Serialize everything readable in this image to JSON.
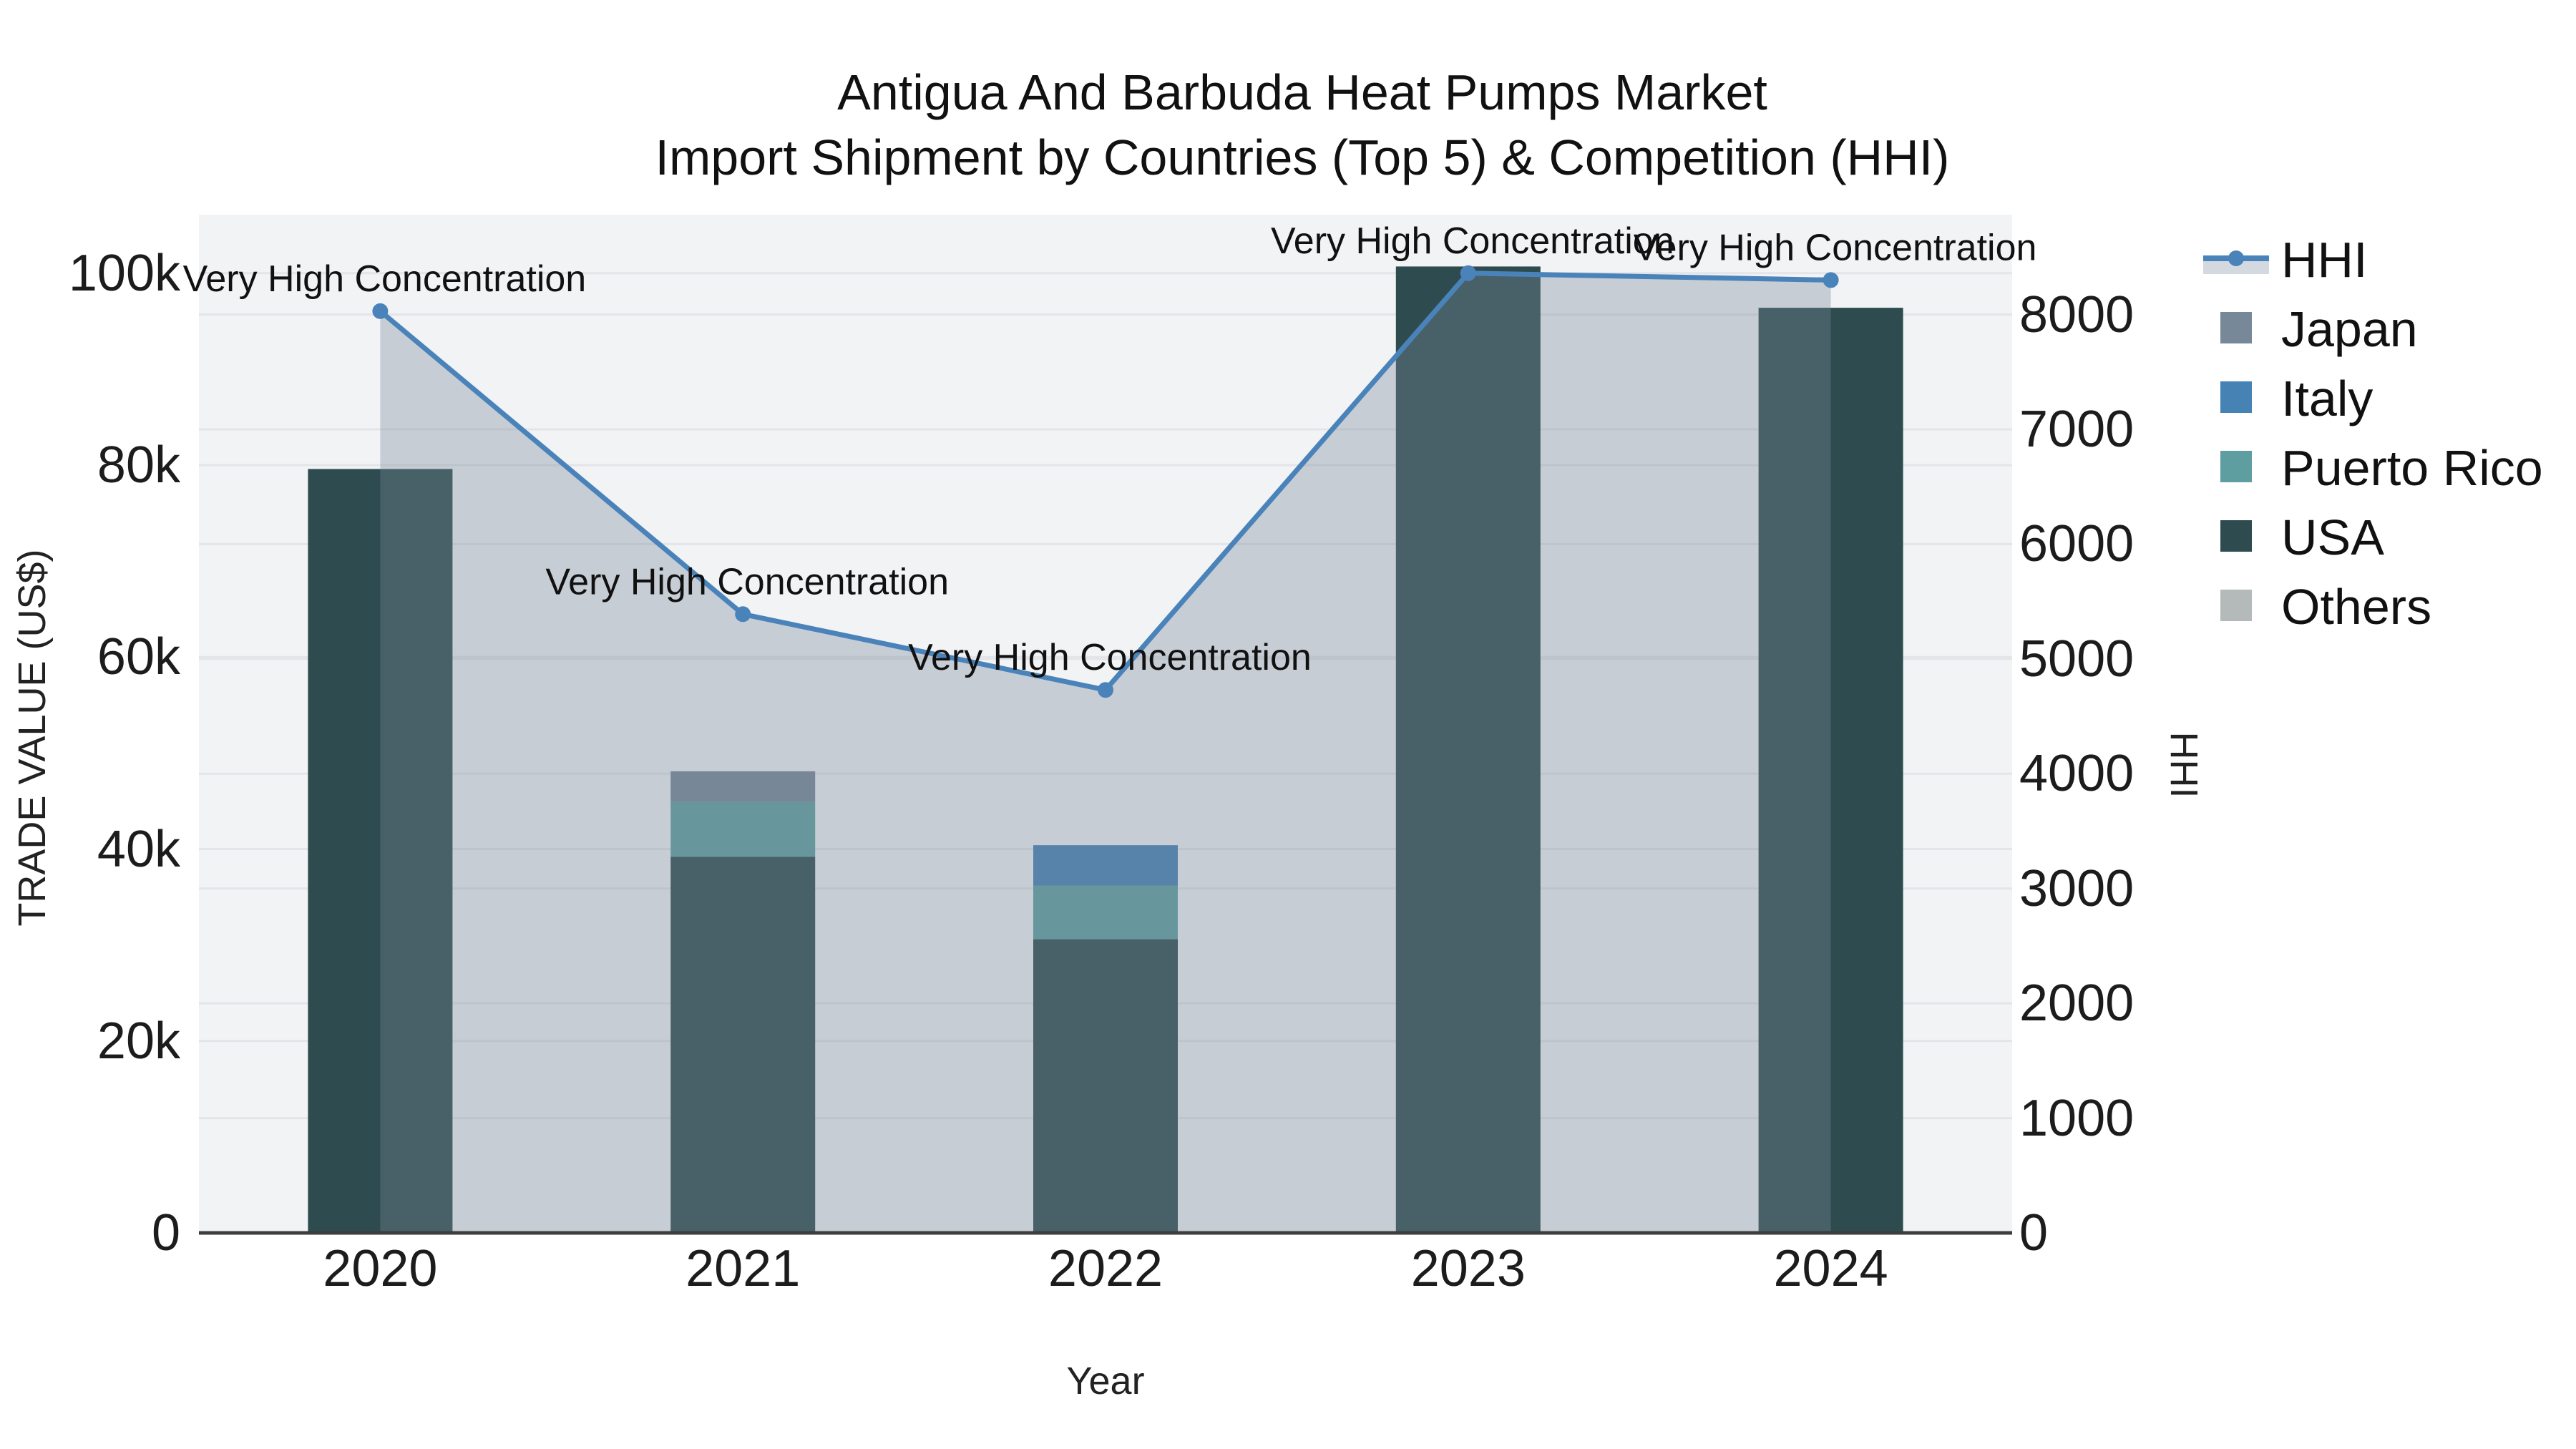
{
  "title": {
    "line1": "Antigua And Barbuda Heat Pumps Market",
    "line2": "Import Shipment by Countries (Top 5) & Competition (HHI)"
  },
  "axes": {
    "x_title": "Year",
    "y_left_title": "TRADE VALUE (US$)",
    "y_right_title": "HHI",
    "x_ticks": [
      "2020",
      "2021",
      "2022",
      "2023",
      "2024"
    ],
    "y_left_ticks": [
      {
        "value": 0,
        "label": "0"
      },
      {
        "value": 20000,
        "label": "20k"
      },
      {
        "value": 40000,
        "label": "40k"
      },
      {
        "value": 60000,
        "label": "60k"
      },
      {
        "value": 80000,
        "label": "80k"
      },
      {
        "value": 100000,
        "label": "100k"
      }
    ],
    "y_right_ticks": [
      {
        "value": 0,
        "label": "0"
      },
      {
        "value": 1000,
        "label": "1000"
      },
      {
        "value": 2000,
        "label": "2000"
      },
      {
        "value": 3000,
        "label": "3000"
      },
      {
        "value": 4000,
        "label": "4000"
      },
      {
        "value": 5000,
        "label": "5000"
      },
      {
        "value": 6000,
        "label": "6000"
      },
      {
        "value": 7000,
        "label": "7000"
      },
      {
        "value": 8000,
        "label": "8000"
      }
    ]
  },
  "legend": [
    {
      "label": "HHI",
      "type": "line",
      "color": "#4a83ba"
    },
    {
      "label": "Japan",
      "type": "swatch",
      "color": "#778899"
    },
    {
      "label": "Italy",
      "type": "swatch",
      "color": "#4682B4"
    },
    {
      "label": "Puerto Rico",
      "type": "swatch",
      "color": "#5F9EA0"
    },
    {
      "label": "USA",
      "type": "swatch",
      "color": "#2e4c4f"
    },
    {
      "label": "Others",
      "type": "swatch",
      "color": "#b4b9b9"
    }
  ],
  "chart_data": {
    "type": "bar+line",
    "categories": [
      "2020",
      "2021",
      "2022",
      "2023",
      "2024"
    ],
    "bar_series": [
      {
        "name": "USA",
        "color": "#2e4c4f",
        "values": [
          79600,
          39200,
          30600,
          100700,
          96400
        ]
      },
      {
        "name": "Puerto Rico",
        "color": "#5F9EA0",
        "values": [
          0,
          5700,
          5600,
          0,
          0
        ]
      },
      {
        "name": "Italy",
        "color": "#4682B4",
        "values": [
          0,
          0,
          4200,
          0,
          0
        ]
      },
      {
        "name": "Japan",
        "color": "#778899",
        "values": [
          0,
          3200,
          0,
          0,
          0
        ]
      },
      {
        "name": "Others",
        "color": "#b4b9b9",
        "values": [
          0,
          0,
          0,
          0,
          0
        ]
      }
    ],
    "line_series": {
      "name": "HHI",
      "color": "#4a83ba",
      "fill_color": "rgba(119,136,153,0.35)",
      "values": [
        8030,
        5390,
        4730,
        8360,
        8300
      ]
    },
    "annotation_text": "Very High Concentration",
    "annotated_points": [
      0,
      1,
      2,
      3,
      4
    ],
    "xlabel": "Year",
    "ylabel_left": "TRADE VALUE (US$)",
    "ylabel_right": "HHI",
    "y_left_range": [
      0,
      106100
    ],
    "y_right_range": [
      0,
      8870
    ],
    "grid": true,
    "legend_position": "right",
    "plot_bg": "#f2f3f4",
    "grid_color": "#e3e5e8",
    "axisline_color": "#3d3d3d"
  }
}
